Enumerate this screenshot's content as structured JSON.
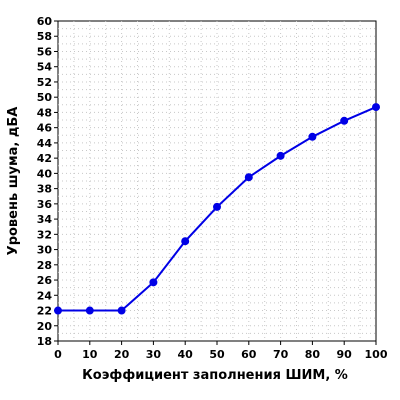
{
  "chart_data": {
    "type": "line",
    "title": "",
    "xlabel": "Коэффициент заполнения ШИМ, %",
    "ylabel": "Уровень шума, дБА",
    "x": [
      0,
      10,
      20,
      30,
      40,
      50,
      60,
      70,
      80,
      90,
      100
    ],
    "series": [
      {
        "values": [
          22.0,
          22.0,
          22.0,
          25.7,
          31.1,
          35.6,
          39.5,
          42.3,
          44.8,
          46.9,
          48.7
        ],
        "color": "#0000e6"
      }
    ],
    "xlim": [
      0,
      100
    ],
    "ylim": [
      18,
      60
    ],
    "xticks": [
      "0",
      "10",
      "20",
      "30",
      "40",
      "50",
      "60",
      "70",
      "80",
      "90",
      "100"
    ],
    "yticks": [
      "18",
      "20",
      "22",
      "24",
      "26",
      "28",
      "30",
      "32",
      "34",
      "36",
      "38",
      "40",
      "42",
      "44",
      "46",
      "48",
      "50",
      "52",
      "54",
      "56",
      "58",
      "60"
    ],
    "grid": true,
    "gridline_color": "#c8c8c8",
    "legend": "none"
  }
}
